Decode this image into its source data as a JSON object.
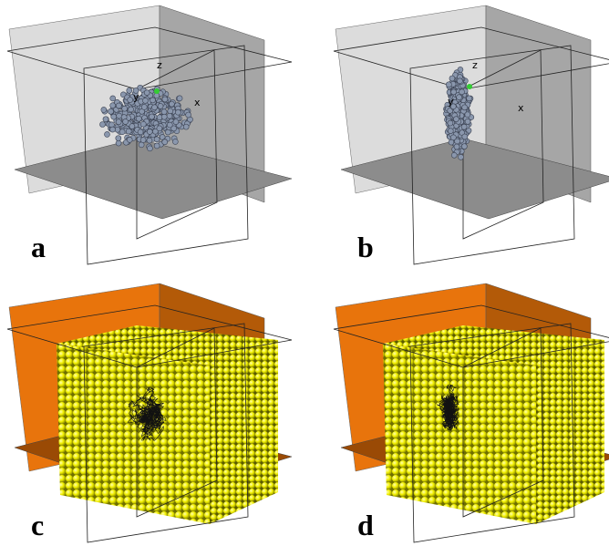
{
  "panels": [
    {
      "label": "a",
      "axes": [
        "z",
        "x",
        "y"
      ]
    },
    {
      "label": "b",
      "axes": [
        "z",
        "x",
        "y"
      ]
    },
    {
      "label": "c"
    },
    {
      "label": "d"
    }
  ]
}
